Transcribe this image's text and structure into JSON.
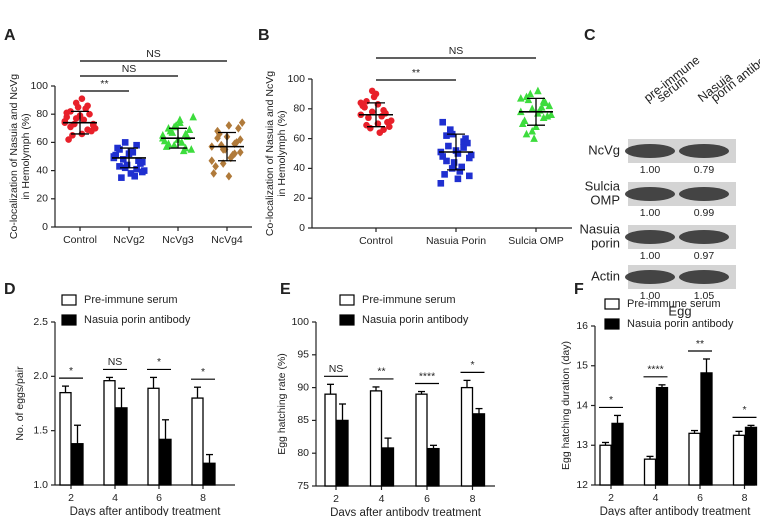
{
  "chart_data": [
    {
      "type": "dot",
      "panel": "A",
      "ylabel": [
        "Co-localization of Nasuia and NcVg",
        "in Hemolymph (%)"
      ],
      "categories": [
        "Control",
        "NcVg2",
        "NcVg3",
        "NcVg4"
      ],
      "colors": [
        "#e8202a",
        "#1f2fd0",
        "#3ddc3d",
        "#b07a3a"
      ],
      "markers": [
        "circle",
        "square",
        "triangle",
        "diamond"
      ],
      "points": [
        [
          74,
          82,
          88,
          91,
          69,
          72,
          78,
          65,
          85,
          76,
          80,
          70,
          62,
          73,
          79,
          84,
          68,
          75,
          71,
          77,
          66,
          86,
          73,
          81
        ],
        [
          49,
          55,
          42,
          38,
          58,
          46,
          51,
          35,
          44,
          53,
          47,
          40,
          56,
          48,
          52,
          36,
          45,
          50,
          43,
          60,
          54,
          41,
          39
        ],
        [
          63,
          70,
          58,
          74,
          66,
          55,
          61,
          68,
          72,
          60,
          64,
          78,
          57,
          67,
          62,
          54,
          69,
          65,
          59,
          71,
          76,
          56
        ],
        [
          57,
          68,
          45,
          72,
          52,
          62,
          38,
          66,
          55,
          49,
          60,
          74,
          43,
          58,
          64,
          51,
          70,
          47,
          63,
          55,
          36,
          59,
          53
        ]
      ],
      "mean": [
        74,
        49,
        63,
        57
      ],
      "sd": [
        8,
        7,
        7,
        10
      ],
      "annotations": [
        "**",
        "NS",
        "NS"
      ],
      "ylim": [
        0,
        100
      ],
      "yticks": [
        0,
        20,
        40,
        60,
        80,
        100
      ]
    },
    {
      "type": "dot",
      "panel": "B",
      "ylabel": [
        "Co-localization of Nasuia and NcVg",
        "in Hemolymph (%)"
      ],
      "categories": [
        "Control",
        "Nasuia Porin",
        "Sulcia OMP"
      ],
      "colors": [
        "#e8202a",
        "#1f2fd0",
        "#3ddc3d"
      ],
      "markers": [
        "circle",
        "square",
        "triangle"
      ],
      "points": [
        [
          76,
          85,
          92,
          70,
          79,
          68,
          82,
          74,
          88,
          64,
          77,
          72,
          81,
          67,
          90,
          75,
          71,
          84,
          69,
          78,
          83,
          66
        ],
        [
          51,
          62,
          40,
          33,
          58,
          47,
          71,
          55,
          44,
          38,
          60,
          49,
          36,
          66,
          52,
          41,
          57,
          30,
          45,
          63,
          50,
          54,
          35,
          48
        ],
        [
          78,
          88,
          65,
          92,
          74,
          82,
          70,
          86,
          60,
          79,
          84,
          76,
          72,
          90,
          68,
          81,
          75,
          87,
          63,
          80,
          77,
          85
        ]
      ],
      "mean": [
        76,
        51,
        78
      ],
      "sd": [
        8,
        12,
        9
      ],
      "annotations": [
        "**",
        "NS"
      ],
      "ylim": [
        0,
        100
      ],
      "yticks": [
        0,
        20,
        40,
        60,
        80,
        100
      ]
    },
    {
      "type": "bar",
      "panel": "D",
      "ylabel": "No. of eggs/pair",
      "xlabel": "Days after antibody treatment",
      "categories": [
        "2",
        "4",
        "6",
        "8"
      ],
      "series": [
        {
          "name": "Pre-immune serum",
          "color": "#ffffff",
          "values": [
            1.85,
            1.96,
            1.89,
            1.8
          ],
          "errors": [
            0.06,
            0.03,
            0.1,
            0.1
          ]
        },
        {
          "name": "Nasuia porin antibody",
          "color": "#000000",
          "values": [
            1.38,
            1.71,
            1.42,
            1.2
          ],
          "errors": [
            0.17,
            0.18,
            0.18,
            0.08
          ]
        }
      ],
      "annotations": [
        "*",
        "NS",
        "*",
        "*"
      ],
      "ylim": [
        1,
        2.5
      ],
      "yticks": [
        {
          "value": 1,
          "label": "1.0"
        },
        1.5,
        {
          "value": 2,
          "label": "2.0"
        },
        2.5
      ]
    },
    {
      "type": "bar",
      "panel": "E",
      "ylabel": "Egg hatching rate (%)",
      "xlabel": "Days after antibody treatment",
      "categories": [
        "2",
        "4",
        "6",
        "8"
      ],
      "series": [
        {
          "name": "Pre-immune serum",
          "color": "#ffffff",
          "values": [
            89,
            89.5,
            89,
            90
          ],
          "errors": [
            1.5,
            0.6,
            0.4,
            1.1
          ]
        },
        {
          "name": "Nasuia porin antibody",
          "color": "#000000",
          "values": [
            85,
            80.8,
            80.7,
            86
          ],
          "errors": [
            2.5,
            1.5,
            0.5,
            0.8
          ]
        }
      ],
      "annotations": [
        "NS",
        "**",
        "****",
        "*"
      ],
      "ylim": [
        75,
        100
      ],
      "yticks": [
        75,
        80,
        85,
        90,
        95,
        100
      ]
    },
    {
      "type": "bar",
      "panel": "F",
      "ylabel": "Egg hatching duration (day)",
      "xlabel": "Days after antibody treatment",
      "categories": [
        "2",
        "4",
        "6",
        "8"
      ],
      "series": [
        {
          "name": "Pre-immune serum",
          "color": "#ffffff",
          "values": [
            13,
            12.65,
            13.3,
            13.25
          ],
          "errors": [
            0.07,
            0.07,
            0.07,
            0.1
          ]
        },
        {
          "name": "Nasuia porin antibody",
          "color": "#000000",
          "values": [
            13.55,
            14.45,
            14.82,
            13.45
          ],
          "errors": [
            0.2,
            0.07,
            0.35,
            0.05
          ]
        }
      ],
      "annotations": [
        "*",
        "****",
        "**",
        "*"
      ],
      "ylim": [
        12,
        16
      ],
      "yticks": [
        12,
        13,
        14,
        15,
        16
      ]
    }
  ],
  "blot": {
    "panel": "C",
    "columns": [
      [
        "pre-immune",
        "serum"
      ],
      [
        "Nasuia",
        "porin antibody"
      ]
    ],
    "rows": [
      {
        "label": [
          "NcVg"
        ],
        "values": [
          "1.00",
          "0.79"
        ]
      },
      {
        "label": [
          "Sulcia",
          "OMP"
        ],
        "values": [
          "1.00",
          "0.99"
        ]
      },
      {
        "label": [
          "Nasuia",
          "porin"
        ],
        "values": [
          "1.00",
          "0.97"
        ]
      },
      {
        "label": [
          "Actin"
        ],
        "values": [
          "1.00",
          "1.05"
        ]
      }
    ],
    "footer": "Egg"
  }
}
